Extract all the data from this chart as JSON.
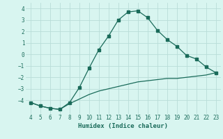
{
  "line1_x": [
    4,
    5,
    6,
    7,
    8,
    9,
    10,
    11,
    12,
    13,
    14,
    15,
    16,
    17,
    18,
    19,
    20,
    21,
    22,
    23
  ],
  "line1_y": [
    -4.2,
    -4.5,
    -4.7,
    -4.8,
    -4.2,
    -2.9,
    -1.2,
    0.4,
    1.6,
    3.0,
    3.7,
    3.8,
    3.2,
    2.1,
    1.3,
    0.7,
    -0.1,
    -0.4,
    -1.1,
    -1.6
  ],
  "line2_x": [
    4,
    5,
    6,
    7,
    8,
    9,
    10,
    11,
    12,
    13,
    14,
    15,
    16,
    17,
    18,
    19,
    20,
    21,
    22,
    23
  ],
  "line2_y": [
    -4.2,
    -4.5,
    -4.7,
    -4.8,
    -4.3,
    -3.9,
    -3.5,
    -3.2,
    -3.0,
    -2.8,
    -2.6,
    -2.4,
    -2.3,
    -2.2,
    -2.1,
    -2.1,
    -2.0,
    -1.9,
    -1.8,
    -1.6
  ],
  "color": "#1a6b5a",
  "bg_color": "#d8f5f0",
  "grid_color": "#b8ddd8",
  "xlabel": "Humidex (Indice chaleur)",
  "ylim": [
    -5.2,
    4.5
  ],
  "xlim": [
    3.5,
    23.5
  ],
  "yticks": [
    -4,
    -3,
    -2,
    -1,
    0,
    1,
    2,
    3,
    4
  ],
  "xticks": [
    4,
    5,
    6,
    7,
    8,
    9,
    10,
    11,
    12,
    13,
    14,
    15,
    16,
    17,
    18,
    19,
    20,
    21,
    22,
    23
  ],
  "tick_fontsize": 5.5,
  "xlabel_fontsize": 6.5
}
